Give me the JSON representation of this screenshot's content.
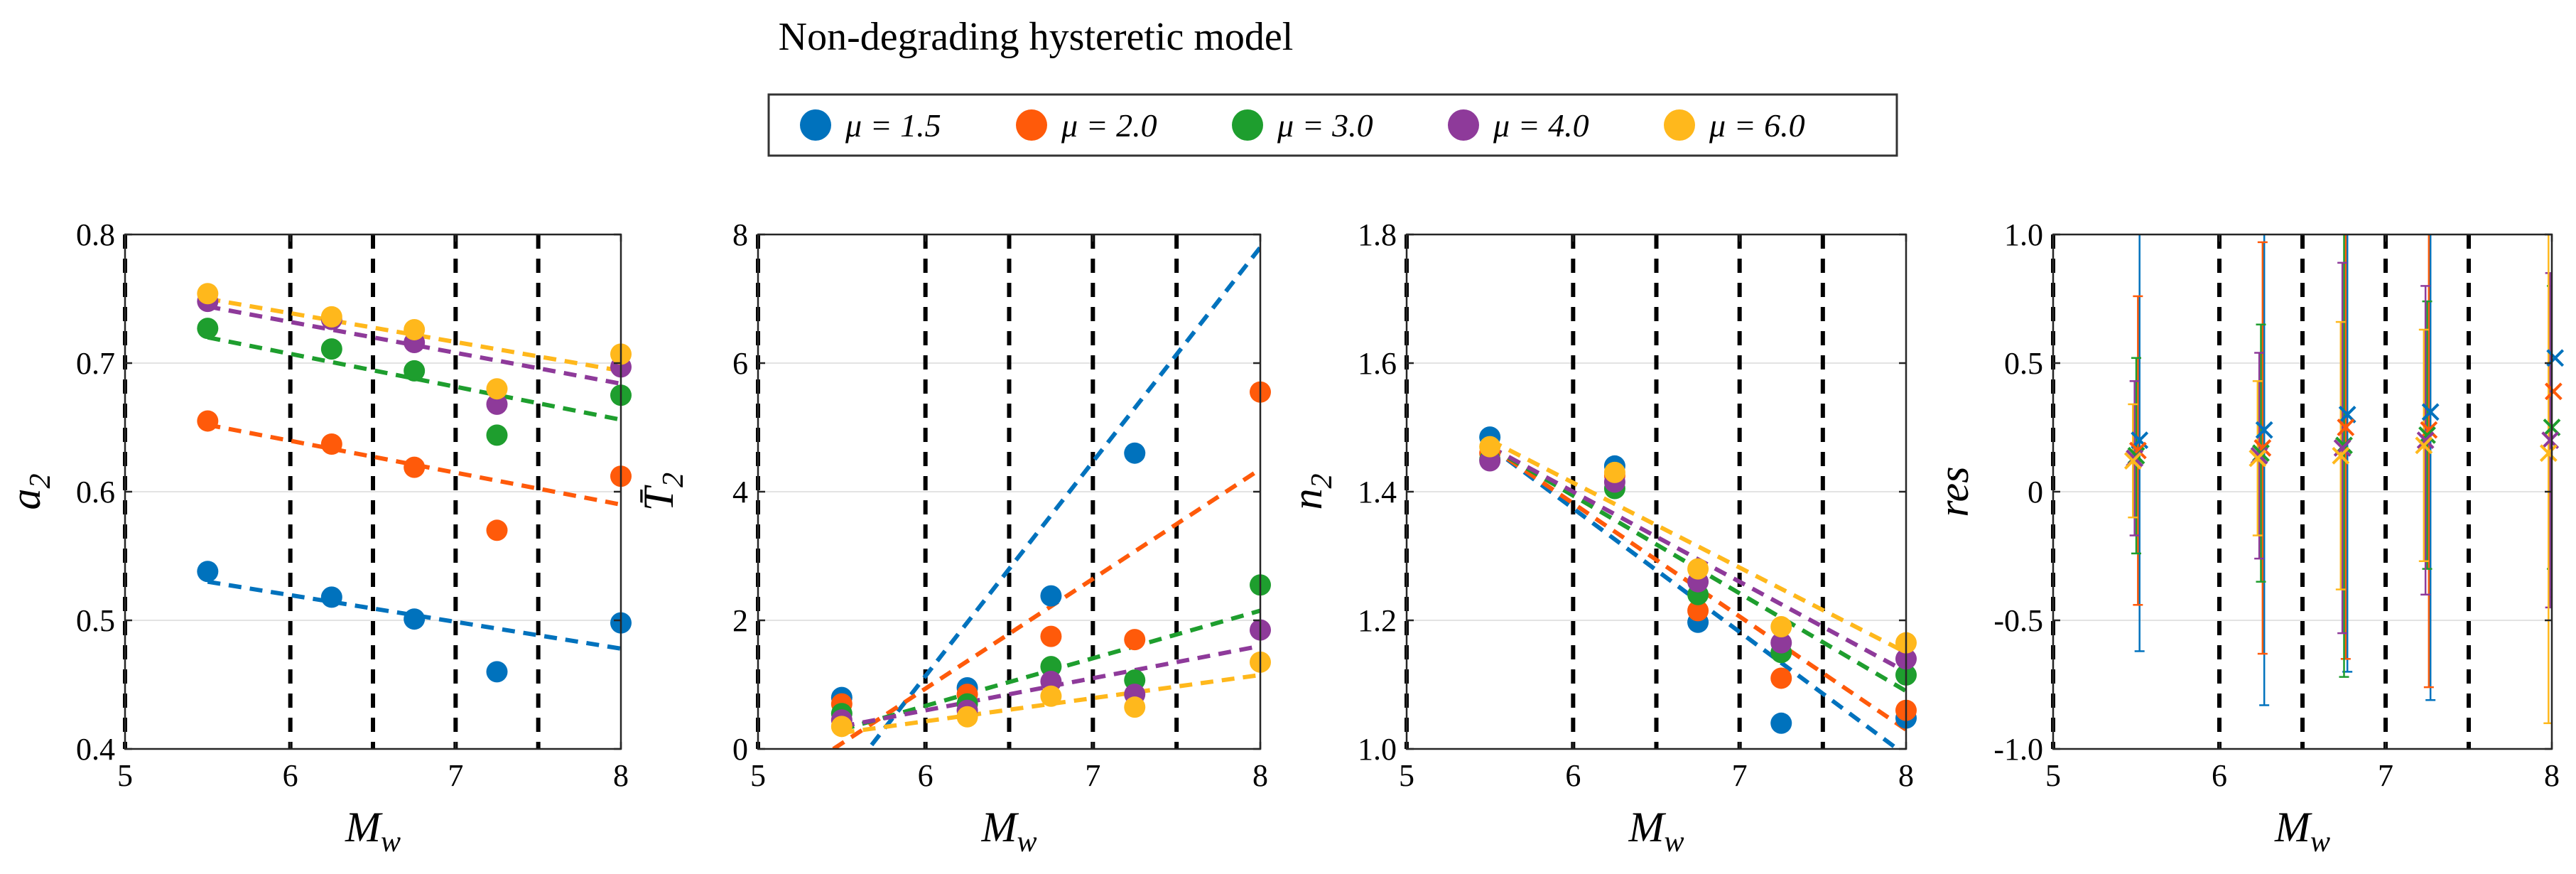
{
  "figure": {
    "title": "Non-degrading hysteretic model",
    "legend": [
      {
        "label": "μ = 1.5",
        "color": "#0072BD"
      },
      {
        "label": "μ = 2.0",
        "color": "#FF5A0A"
      },
      {
        "label": "μ = 3.0",
        "color": "#1E9E2E"
      },
      {
        "label": "μ = 4.0",
        "color": "#8E3A9A"
      },
      {
        "label": "μ = 6.0",
        "color": "#FFB81C"
      }
    ]
  },
  "chart_data": [
    {
      "type": "scatter",
      "id": "a2",
      "xlabel": "M_w",
      "ylabel_main": "a",
      "ylabel_sub": "2",
      "xlim": [
        5,
        8
      ],
      "ylim": [
        0.4,
        0.8
      ],
      "xticks": [
        "5",
        "6",
        "7",
        "8"
      ],
      "yticks": [
        "0.4",
        "0.5",
        "0.6",
        "0.7",
        "0.8"
      ],
      "xtick_values": [
        5,
        6,
        7,
        8
      ],
      "ytick_values": [
        0.4,
        0.5,
        0.6,
        0.7,
        0.8
      ],
      "vlines": [
        5,
        6,
        6.5,
        7,
        7.5
      ],
      "x": [
        5.5,
        6.25,
        6.75,
        7.25,
        8.0
      ],
      "series": [
        {
          "name": "μ = 1.5",
          "values": [
            0.538,
            0.518,
            0.501,
            0.46,
            0.498
          ],
          "fit": [
            [
              5.5,
              0.53
            ],
            [
              8.0,
              0.478
            ]
          ]
        },
        {
          "name": "μ = 2.0",
          "values": [
            0.655,
            0.637,
            0.619,
            0.57,
            0.612
          ],
          "fit": [
            [
              5.5,
              0.652
            ],
            [
              8.0,
              0.59
            ]
          ]
        },
        {
          "name": "μ = 3.0",
          "values": [
            0.727,
            0.711,
            0.694,
            0.644,
            0.675
          ],
          "fit": [
            [
              5.5,
              0.72
            ],
            [
              8.0,
              0.656
            ]
          ]
        },
        {
          "name": "μ = 4.0",
          "values": [
            0.748,
            0.734,
            0.716,
            0.668,
            0.697
          ],
          "fit": [
            [
              5.5,
              0.744
            ],
            [
              8.0,
              0.684
            ]
          ]
        },
        {
          "name": "μ = 6.0",
          "values": [
            0.754,
            0.736,
            0.726,
            0.68,
            0.707
          ],
          "fit": [
            [
              5.5,
              0.75
            ],
            [
              8.0,
              0.694
            ]
          ]
        }
      ]
    },
    {
      "type": "scatter",
      "id": "T2",
      "xlabel": "M_w",
      "ylabel_main": "T̄",
      "ylabel_sub": "2",
      "xlim": [
        5,
        8
      ],
      "ylim": [
        0,
        8
      ],
      "xticks": [
        "5",
        "6",
        "7",
        "8"
      ],
      "yticks": [
        "0",
        "2",
        "4",
        "6",
        "8"
      ],
      "xtick_values": [
        5,
        6,
        7,
        8
      ],
      "ytick_values": [
        0,
        2,
        4,
        6,
        8
      ],
      "vlines": [
        5,
        6,
        6.5,
        7,
        7.5
      ],
      "x": [
        5.5,
        6.25,
        6.75,
        7.25,
        8.0
      ],
      "series": [
        {
          "name": "μ = 1.5",
          "values": [
            0.8,
            0.95,
            2.38,
            4.6,
            null
          ],
          "fit": [
            [
              5.6,
              -0.2
            ],
            [
              8.0,
              7.8
            ]
          ]
        },
        {
          "name": "μ = 2.0",
          "values": [
            0.7,
            0.85,
            1.75,
            1.7,
            5.55
          ],
          "fit": [
            [
              5.45,
              0.0
            ],
            [
              8.0,
              4.35
            ]
          ]
        },
        {
          "name": "μ = 3.0",
          "values": [
            0.55,
            0.7,
            1.28,
            1.07,
            2.55
          ],
          "fit": [
            [
              5.5,
              0.3
            ],
            [
              8.0,
              2.15
            ]
          ]
        },
        {
          "name": "μ = 4.0",
          "values": [
            0.45,
            0.6,
            1.05,
            0.85,
            1.85
          ],
          "fit": [
            [
              5.5,
              0.35
            ],
            [
              8.0,
              1.6
            ]
          ]
        },
        {
          "name": "μ = 6.0",
          "values": [
            0.35,
            0.5,
            0.82,
            0.65,
            1.35
          ],
          "fit": [
            [
              5.5,
              0.25
            ],
            [
              8.0,
              1.15
            ]
          ]
        }
      ]
    },
    {
      "type": "scatter",
      "id": "n2",
      "xlabel": "M_w",
      "ylabel_main": "n",
      "ylabel_sub": "2",
      "xlim": [
        5,
        8
      ],
      "ylim": [
        1.0,
        1.8
      ],
      "xticks": [
        "5",
        "6",
        "7",
        "8"
      ],
      "yticks": [
        "1.0",
        "1.2",
        "1.4",
        "1.6",
        "1.8"
      ],
      "xtick_values": [
        5,
        6,
        7,
        8
      ],
      "ytick_values": [
        1.0,
        1.2,
        1.4,
        1.6,
        1.8
      ],
      "vlines": [
        5,
        6,
        6.5,
        7,
        7.5
      ],
      "x": [
        5.5,
        6.25,
        6.75,
        7.25,
        8.0
      ],
      "series": [
        {
          "name": "μ = 1.5",
          "values": [
            1.485,
            1.44,
            1.197,
            1.04,
            1.048
          ],
          "fit": [
            [
              5.5,
              1.47
            ],
            [
              8.0,
              0.99
            ]
          ]
        },
        {
          "name": "μ = 2.0",
          "values": [
            1.46,
            1.425,
            1.215,
            1.11,
            1.06
          ],
          "fit": [
            [
              5.5,
              1.47
            ],
            [
              8.0,
              1.03
            ]
          ]
        },
        {
          "name": "μ = 3.0",
          "values": [
            1.45,
            1.405,
            1.24,
            1.15,
            1.115
          ],
          "fit": [
            [
              5.5,
              1.47
            ],
            [
              8.0,
              1.09
            ]
          ]
        },
        {
          "name": "μ = 4.0",
          "values": [
            1.448,
            1.415,
            1.26,
            1.165,
            1.14
          ],
          "fit": [
            [
              5.5,
              1.47
            ],
            [
              8.0,
              1.12
            ]
          ]
        },
        {
          "name": "μ = 6.0",
          "values": [
            1.47,
            1.43,
            1.28,
            1.19,
            1.165
          ],
          "fit": [
            [
              5.5,
              1.48
            ],
            [
              8.0,
              1.15
            ]
          ]
        }
      ]
    },
    {
      "type": "errorbar",
      "id": "res",
      "xlabel": "M_w",
      "ylabel_main": "res",
      "ylabel_sub": "",
      "xlim": [
        5,
        8
      ],
      "ylim": [
        -1.0,
        1.0
      ],
      "xticks": [
        "5",
        "6",
        "7",
        "8"
      ],
      "yticks": [
        "-1.0",
        "-0.5",
        "0",
        "0.5",
        "1.0"
      ],
      "xtick_values": [
        5,
        6,
        7,
        8
      ],
      "ytick_values": [
        -1.0,
        -0.5,
        0,
        0.5,
        1.0
      ],
      "vlines": [
        5,
        6,
        6.5,
        7,
        7.5
      ],
      "x_offsets": [
        0.02,
        0.01,
        0.0,
        -0.01,
        -0.02
      ],
      "x": [
        5.5,
        6.25,
        6.75,
        7.25,
        8.0
      ],
      "series": [
        {
          "name": "μ = 1.5",
          "values": [
            0.2,
            0.24,
            0.3,
            0.31,
            0.52
          ],
          "err": [
            0.82,
            1.07,
            1.0,
            1.12,
            0.9
          ]
        },
        {
          "name": "μ = 2.0",
          "values": [
            0.16,
            0.17,
            0.25,
            0.24,
            0.39
          ],
          "err": [
            0.6,
            0.8,
            0.9,
            1.0,
            0.8
          ]
        },
        {
          "name": "μ = 3.0",
          "values": [
            0.14,
            0.15,
            0.18,
            0.22,
            0.25
          ],
          "err": [
            0.38,
            0.5,
            0.9,
            0.52,
            0.55
          ]
        },
        {
          "name": "μ = 4.0",
          "values": [
            0.13,
            0.14,
            0.17,
            0.2,
            0.2
          ],
          "err": [
            0.3,
            0.4,
            0.72,
            0.6,
            0.65
          ]
        },
        {
          "name": "μ = 6.0",
          "values": [
            0.12,
            0.13,
            0.14,
            0.18,
            0.15
          ],
          "err": [
            0.22,
            0.3,
            0.52,
            0.45,
            1.05
          ]
        }
      ]
    }
  ]
}
